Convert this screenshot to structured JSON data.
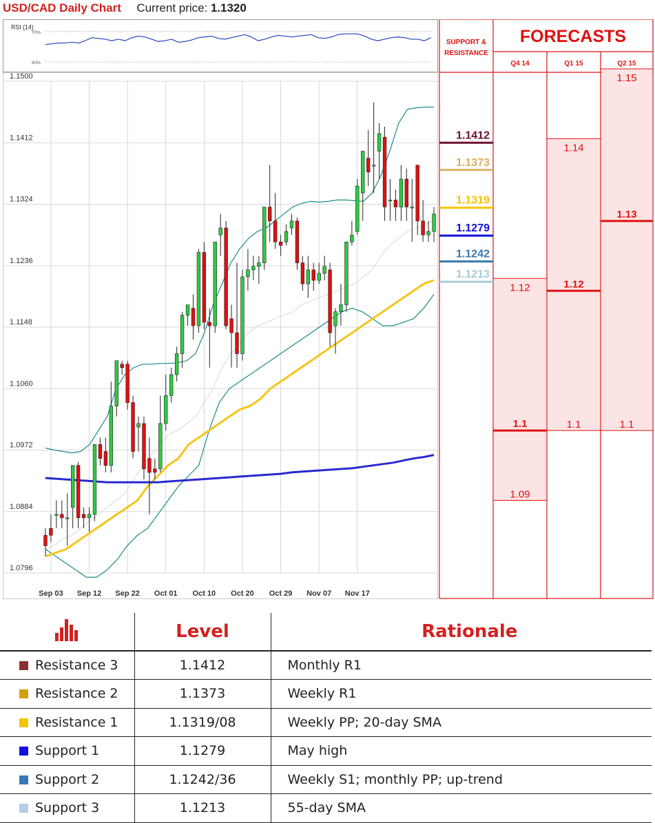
{
  "header": {
    "title": "USD/CAD Daily Chart",
    "price_label": "Current price:",
    "price_value": "1.1320"
  },
  "rsi": {
    "label": "RSI (14)",
    "upper": "70%",
    "lower": "30%",
    "values": [
      53,
      54,
      55,
      55,
      56,
      55,
      58,
      62,
      61,
      60,
      58,
      60,
      58,
      62,
      64,
      63,
      60,
      57,
      58,
      60,
      56,
      57,
      59,
      62,
      63,
      64,
      61,
      60,
      62,
      64,
      66,
      63,
      58,
      60,
      63,
      65,
      64,
      63,
      64,
      65,
      66,
      62,
      61,
      63,
      66,
      67,
      67,
      67,
      64,
      60,
      58,
      60,
      62,
      63,
      62,
      60,
      60,
      58,
      62
    ]
  },
  "chart_data": {
    "type": "candlestick",
    "ylim": [
      1.0796,
      1.15
    ],
    "y_ticks": [
      "1.1500",
      "1.1412",
      "1.1324",
      "1.1236",
      "1.1148",
      "1.1060",
      "1.0972",
      "1.0884",
      "1.0796"
    ],
    "x_ticks": [
      "Sep 03",
      "Sep 12",
      "Sep 22",
      "Oct 01",
      "Oct 10",
      "Oct 20",
      "Oct 29",
      "Nov 07",
      "Nov 17"
    ],
    "x_tick_index": [
      1,
      8,
      15,
      22,
      29,
      36,
      43,
      50,
      57
    ],
    "candles": [
      [
        1.085,
        1.086,
        1.0835,
        1.082
      ],
      [
        1.086,
        1.088,
        1.085,
        1.084
      ],
      [
        1.088,
        1.09,
        1.088,
        1.086
      ],
      [
        1.088,
        1.09,
        1.0875,
        1.086
      ],
      [
        1.0875,
        1.091,
        1.0875,
        1.0835
      ],
      [
        1.089,
        1.095,
        1.095,
        1.086
      ],
      [
        1.095,
        1.0955,
        1.0875,
        1.086
      ],
      [
        1.088,
        1.089,
        1.0875,
        1.086
      ],
      [
        1.0875,
        1.089,
        1.088,
        1.0855
      ],
      [
        1.088,
        1.098,
        1.098,
        1.087
      ],
      [
        1.098,
        1.099,
        1.096,
        1.095
      ],
      [
        1.097,
        1.099,
        1.095,
        1.094
      ],
      [
        1.095,
        1.107,
        1.1035,
        1.094
      ],
      [
        1.1035,
        1.11,
        1.11,
        1.102
      ],
      [
        1.1095,
        1.11,
        1.109,
        1.108
      ],
      [
        1.1095,
        1.11,
        1.104,
        1.103
      ],
      [
        1.104,
        1.105,
        1.097,
        1.096
      ],
      [
        1.1005,
        1.102,
        1.101,
        1.097
      ],
      [
        1.101,
        1.102,
        1.0945,
        1.093
      ],
      [
        1.096,
        1.099,
        1.094,
        1.088
      ],
      [
        1.0945,
        1.096,
        1.094,
        1.093
      ],
      [
        1.0945,
        1.105,
        1.101,
        1.094
      ],
      [
        1.101,
        1.108,
        1.105,
        1.1
      ],
      [
        1.105,
        1.109,
        1.108,
        1.104
      ],
      [
        1.108,
        1.112,
        1.111,
        1.107
      ],
      [
        1.111,
        1.117,
        1.1165,
        1.109
      ],
      [
        1.1165,
        1.118,
        1.118,
        1.115
      ],
      [
        1.1175,
        1.1195,
        1.115,
        1.113
      ],
      [
        1.115,
        1.126,
        1.1255,
        1.114
      ],
      [
        1.1255,
        1.127,
        1.1155,
        1.1145
      ],
      [
        1.1155,
        1.1175,
        1.115,
        1.109
      ],
      [
        1.115,
        1.127,
        1.127,
        1.114
      ],
      [
        1.128,
        1.131,
        1.129,
        1.125
      ],
      [
        1.129,
        1.13,
        1.115,
        1.1145
      ],
      [
        1.116,
        1.118,
        1.114,
        1.109
      ],
      [
        1.114,
        1.124,
        1.111,
        1.109
      ],
      [
        1.111,
        1.123,
        1.122,
        1.11
      ],
      [
        1.122,
        1.126,
        1.123,
        1.12
      ],
      [
        1.123,
        1.125,
        1.1235,
        1.1215
      ],
      [
        1.1235,
        1.125,
        1.124,
        1.121
      ],
      [
        1.124,
        1.132,
        1.132,
        1.123
      ],
      [
        1.132,
        1.138,
        1.13,
        1.127
      ],
      [
        1.13,
        1.134,
        1.127,
        1.126
      ],
      [
        1.127,
        1.128,
        1.1265,
        1.125
      ],
      [
        1.127,
        1.1295,
        1.1285,
        1.1265
      ],
      [
        1.129,
        1.131,
        1.13,
        1.128
      ],
      [
        1.13,
        1.1305,
        1.124,
        1.123
      ],
      [
        1.124,
        1.125,
        1.121,
        1.12
      ],
      [
        1.121,
        1.125,
        1.123,
        1.119
      ],
      [
        1.123,
        1.124,
        1.1215,
        1.12
      ],
      [
        1.1215,
        1.124,
        1.1225,
        1.121
      ],
      [
        1.1225,
        1.125,
        1.1235,
        1.1215
      ],
      [
        1.123,
        1.124,
        1.114,
        1.112
      ],
      [
        1.115,
        1.1175,
        1.117,
        1.111
      ],
      [
        1.117,
        1.121,
        1.118,
        1.115
      ],
      [
        1.118,
        1.127,
        1.127,
        1.117
      ],
      [
        1.127,
        1.13,
        1.128,
        1.1265
      ],
      [
        1.1285,
        1.136,
        1.135,
        1.128
      ],
      [
        1.134,
        1.14,
        1.14,
        1.13
      ],
      [
        1.139,
        1.143,
        1.137,
        1.135
      ],
      [
        1.138,
        1.147,
        1.138,
        1.134
      ],
      [
        1.14,
        1.144,
        1.1425,
        1.136
      ],
      [
        1.142,
        1.1435,
        1.132,
        1.13
      ],
      [
        1.133,
        1.136,
        1.133,
        1.13
      ],
      [
        1.133,
        1.1345,
        1.132,
        1.13
      ],
      [
        1.132,
        1.138,
        1.136,
        1.13
      ],
      [
        1.136,
        1.1375,
        1.132,
        1.13
      ],
      [
        1.132,
        1.136,
        1.132,
        1.127
      ],
      [
        1.138,
        1.138,
        1.13,
        1.128
      ],
      [
        1.13,
        1.133,
        1.128,
        1.127
      ],
      [
        1.128,
        1.13,
        1.1285,
        1.127
      ],
      [
        1.1285,
        1.132,
        1.131,
        1.127
      ]
    ],
    "bollinger_upper": [
      1.0975,
      1.0972,
      1.097,
      1.0968,
      1.097,
      1.098,
      1.1,
      1.102,
      1.106,
      1.108,
      1.109,
      1.1095,
      1.1095,
      1.1096,
      1.1096,
      1.1097,
      1.11,
      1.111,
      1.114,
      1.118,
      1.121,
      1.124,
      1.126,
      1.1275,
      1.1285,
      1.129,
      1.13,
      1.131,
      1.132,
      1.1325,
      1.1328,
      1.1327,
      1.1328,
      1.133,
      1.133,
      1.1329,
      1.1328,
      1.134,
      1.1365,
      1.14,
      1.144,
      1.146,
      1.1462,
      1.1463,
      1.1463
    ],
    "bollinger_lower": [
      1.083,
      1.082,
      1.081,
      1.08,
      1.079,
      1.079,
      1.08,
      1.0815,
      1.0835,
      1.085,
      1.086,
      1.088,
      1.09,
      1.092,
      1.0935,
      1.095,
      1.1,
      1.104,
      1.106,
      1.107,
      1.108,
      1.109,
      1.11,
      1.111,
      1.112,
      1.113,
      1.114,
      1.115,
      1.116,
      1.117,
      1.1175,
      1.117,
      1.116,
      1.115,
      1.115,
      1.1155,
      1.116,
      1.1175,
      1.1195
    ],
    "sma_fast": [
      1.083,
      1.0835,
      1.0845,
      1.085,
      1.086,
      1.087,
      1.088,
      1.089,
      1.09,
      1.091,
      1.093,
      1.095,
      1.0965,
      1.098,
      1.0995,
      1.1,
      1.101,
      1.102,
      1.104,
      1.106,
      1.109,
      1.111,
      1.1125,
      1.114,
      1.115,
      1.1155,
      1.116,
      1.1165,
      1.117,
      1.118,
      1.1185,
      1.119,
      1.1195,
      1.12,
      1.1205,
      1.121,
      1.122,
      1.123,
      1.125,
      1.1265,
      1.1275,
      1.1285,
      1.129,
      1.1295,
      1.13
    ],
    "sma_medium": [
      1.082,
      1.0825,
      1.083,
      1.084,
      1.085,
      1.086,
      1.087,
      1.088,
      1.089,
      1.09,
      1.092,
      1.0935,
      1.095,
      1.096,
      1.098,
      1.099,
      1.1,
      1.101,
      1.102,
      1.103,
      1.1035,
      1.1045,
      1.106,
      1.107,
      1.108,
      1.109,
      1.11,
      1.111,
      1.112,
      1.113,
      1.114,
      1.115,
      1.116,
      1.117,
      1.118,
      1.119,
      1.12,
      1.121,
      1.1215
    ],
    "sma_slow": [
      1.0932,
      1.0931,
      1.093,
      1.0929,
      1.0928,
      1.0927,
      1.0926,
      1.0926,
      1.0926,
      1.0926,
      1.0926,
      1.0926,
      1.0927,
      1.0928,
      1.0929,
      1.093,
      1.0931,
      1.0932,
      1.0933,
      1.0934,
      1.0935,
      1.0936,
      1.0937,
      1.0938,
      1.094,
      1.0941,
      1.0942,
      1.0943,
      1.0944,
      1.0945,
      1.0946,
      1.0948,
      1.095,
      1.0952,
      1.0954,
      1.0957,
      1.096,
      1.0962,
      1.0965
    ],
    "colors": {
      "up": "#2ecc40",
      "down": "#e01010",
      "bollinger": "#1a8a8a",
      "sma_fast": "#dddddd",
      "sma_medium": "#f5c518",
      "sma_slow": "#2828d0",
      "grid": "#cccccc"
    }
  },
  "levels_overlay": [
    {
      "label": "1.1412",
      "value": 1.1412,
      "color": "#6b1030"
    },
    {
      "label": "1.1373",
      "value": 1.1373,
      "color": "#d9b060"
    },
    {
      "label": "1.1319",
      "value": 1.1319,
      "color": "#f5c400"
    },
    {
      "label": "1.1279",
      "value": 1.1279,
      "color": "#1010dd"
    },
    {
      "label": "1.1242",
      "value": 1.1242,
      "color": "#3878a8"
    },
    {
      "label": "1.1213",
      "value": 1.1213,
      "color": "#a8ccd8"
    }
  ],
  "forecast": {
    "sr_header": "SUPPORT & RESISTANCE",
    "title": "FORECASTS",
    "columns": [
      {
        "label": "Q4 14",
        "min": 1.09,
        "max": 1.12,
        "median": 1.1,
        "labels": [
          "1.12",
          "1.1",
          "1.09"
        ]
      },
      {
        "label": "Q1 15",
        "min": 1.1,
        "max": 1.14,
        "median": 1.12,
        "labels": [
          "1.14",
          "1.12",
          "1.1"
        ]
      },
      {
        "label": "Q2 15",
        "min": 1.1,
        "max": 1.15,
        "median": 1.13,
        "labels": [
          "1.15",
          "1.13",
          "1.1"
        ]
      }
    ],
    "colors": {
      "accent": "#e01010",
      "fill": "#fde4e4"
    }
  },
  "table": {
    "headers": {
      "icon": "bar-chart-icon",
      "level": "Level",
      "rationale": "Rationale"
    },
    "rows": [
      {
        "name": "Resistance 3",
        "level": "1.1412",
        "rationale": "Monthly R1",
        "color": "#8b3030"
      },
      {
        "name": "Resistance 2",
        "level": "1.1373",
        "rationale": "Weekly R1",
        "color": "#d0a010"
      },
      {
        "name": "Resistance 1",
        "level": "1.1319/08",
        "rationale": "Weekly PP; 20-day SMA",
        "color": "#f5c400"
      },
      {
        "name": "Support 1",
        "level": "1.1279",
        "rationale": "May high",
        "color": "#1010dd"
      },
      {
        "name": "Support 2",
        "level": "1.1242/36",
        "rationale": "Weekly S1; monthly PP; up-trend",
        "color": "#3878b8"
      },
      {
        "name": "Support 3",
        "level": "1.1213",
        "rationale": "55-day SMA",
        "color": "#b8cce8"
      }
    ]
  }
}
